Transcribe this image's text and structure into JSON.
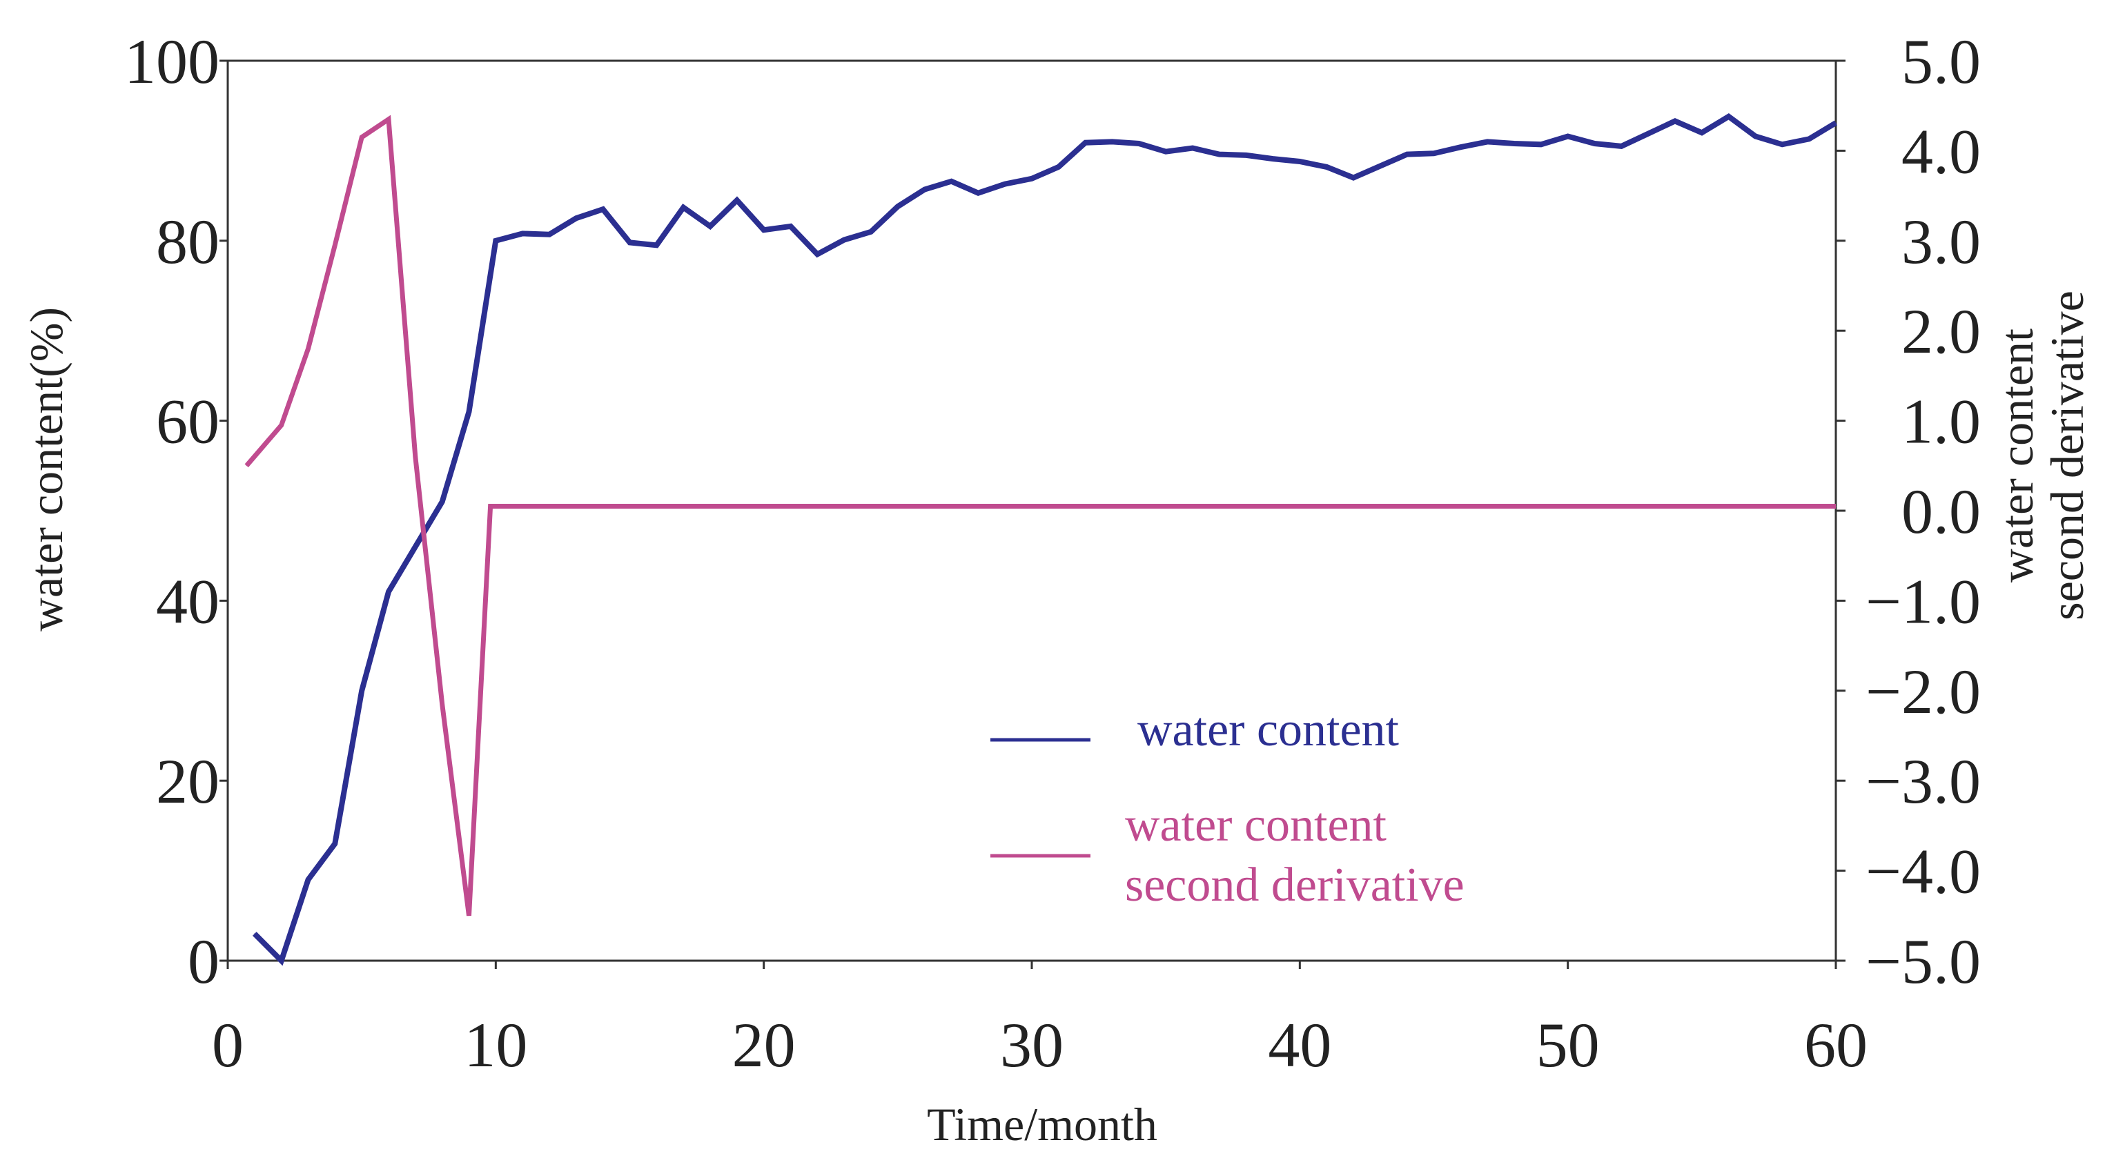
{
  "chart_data": {
    "type": "line",
    "xlabel": "Time/month",
    "ylabel_left": "water content(%)",
    "ylabel_right": [
      "water content",
      "second derivative"
    ],
    "xlim": [
      0,
      60
    ],
    "ylim_left": [
      0,
      100
    ],
    "ylim_right": [
      -5.0,
      5.0
    ],
    "x_ticks": [
      "0",
      "10",
      "20",
      "30",
      "40",
      "50",
      "60"
    ],
    "y_left_ticks": [
      "0",
      "20",
      "40",
      "60",
      "80",
      "100"
    ],
    "y_right_ticks": [
      "−5.0",
      "−4.0",
      "−3.0",
      "−2.0",
      "−1.0",
      "0.0",
      "1.0",
      "2.0",
      "3.0",
      "4.0",
      "5.0"
    ],
    "grid": false,
    "legend_position": "bottom-center",
    "colors": {
      "water": "#2b2f91",
      "derivative": "#c04b8f",
      "axis": "#333333"
    },
    "series": [
      {
        "name": "water content",
        "axis": "left",
        "x": [
          1,
          2,
          3,
          4,
          5,
          6,
          7,
          8,
          9,
          10,
          11,
          12,
          13,
          14,
          15,
          16,
          17,
          18,
          19,
          20,
          21,
          22,
          23,
          24,
          25,
          26,
          27,
          28,
          29,
          30,
          31,
          32,
          33,
          34,
          35,
          36,
          37,
          38,
          39,
          40,
          41,
          42,
          43,
          44,
          45,
          46,
          47,
          48,
          49,
          50,
          51,
          52,
          53,
          54,
          55,
          56,
          57,
          58,
          59,
          60
        ],
        "values": [
          3,
          0,
          9,
          13,
          30,
          41,
          46,
          51,
          61,
          80,
          80.8,
          80.7,
          82.5,
          83.5,
          79.8,
          79.5,
          83.7,
          81.6,
          84.5,
          81.2,
          81.6,
          78.5,
          80.1,
          81,
          83.8,
          85.7,
          86.6,
          85.3,
          86.3,
          86.9,
          88.2,
          90.9,
          91,
          90.8,
          89.9,
          90.3,
          89.6,
          89.5,
          89.1,
          88.8,
          88.2,
          87,
          88.3,
          89.6,
          89.7,
          90.4,
          91,
          90.8,
          90.7,
          91.6,
          90.8,
          90.5,
          91.9,
          93.3,
          92,
          93.8,
          91.6,
          90.7,
          91.3,
          93.1
        ]
      },
      {
        "name": "water content second derivative",
        "legend_lines": [
          "water content",
          "second derivative"
        ],
        "axis": "right",
        "x": [
          0.7,
          2,
          3,
          4,
          5,
          6,
          7,
          8,
          9,
          9.8,
          60
        ],
        "values": [
          0.5,
          0.95,
          1.8,
          2.95,
          4.15,
          4.35,
          0.6,
          -2.15,
          -4.5,
          0.05,
          0.05
        ]
      }
    ]
  }
}
